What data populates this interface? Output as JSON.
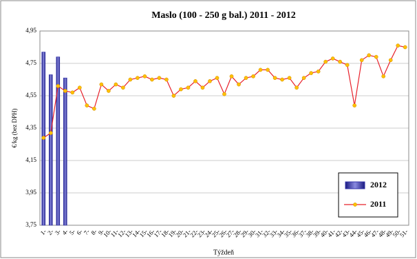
{
  "chart_data": {
    "type": "bar_line",
    "title": "Maslo (100 - 250 g bal.) 2011 - 2012",
    "y_label": "€/kg (bez DPH)",
    "x_label": "Týždeň",
    "categories": [
      "1-",
      "2-",
      "3-",
      "4-",
      "5-",
      "6-",
      "7-",
      "8-",
      "9-",
      "10-",
      "11-",
      "12-",
      "13-",
      "14-",
      "15-",
      "16-",
      "17-",
      "18-",
      "19-",
      "20-",
      "21-",
      "22-",
      "23-",
      "24-",
      "25-",
      "26-",
      "27-",
      "28-",
      "29-",
      "30-",
      "31-",
      "32-",
      "33-",
      "34-",
      "35-",
      "36-",
      "37-",
      "38-",
      "39-",
      "40-",
      "41-",
      "42-",
      "43-",
      "44-",
      "45-",
      "46-",
      "47-",
      "48-",
      "49-",
      "50-",
      "51-"
    ],
    "series": [
      {
        "name": "2012",
        "type": "bar",
        "color": "#3333aa",
        "values": [
          4.82,
          4.68,
          4.79,
          4.66,
          null,
          null,
          null,
          null,
          null,
          null,
          null,
          null,
          null,
          null,
          null,
          null,
          null,
          null,
          null,
          null,
          null,
          null,
          null,
          null,
          null,
          null,
          null,
          null,
          null,
          null,
          null,
          null,
          null,
          null,
          null,
          null,
          null,
          null,
          null,
          null,
          null,
          null,
          null,
          null,
          null,
          null,
          null,
          null,
          null,
          null,
          null
        ]
      },
      {
        "name": "2011",
        "type": "line",
        "color": "#e8202a",
        "marker_color": "#ffc000",
        "values": [
          4.29,
          4.32,
          4.61,
          4.58,
          4.57,
          4.6,
          4.49,
          4.47,
          4.62,
          4.58,
          4.62,
          4.6,
          4.65,
          4.66,
          4.67,
          4.65,
          4.66,
          4.65,
          4.55,
          4.59,
          4.6,
          4.64,
          4.6,
          4.64,
          4.66,
          4.56,
          4.67,
          4.62,
          4.66,
          4.67,
          4.71,
          4.71,
          4.66,
          4.65,
          4.66,
          4.6,
          4.66,
          4.69,
          4.7,
          4.76,
          4.78,
          4.76,
          4.74,
          4.49,
          4.77,
          4.8,
          4.79,
          4.67,
          4.77,
          4.86,
          4.85
        ]
      }
    ],
    "ylim": [
      3.75,
      4.95
    ],
    "yticks": [
      {
        "value": 3.75,
        "label": "3,75"
      },
      {
        "value": 3.95,
        "label": "3,95"
      },
      {
        "value": 4.15,
        "label": "4,15"
      },
      {
        "value": 4.35,
        "label": "4,35"
      },
      {
        "value": 4.55,
        "label": "4,55"
      },
      {
        "value": 4.75,
        "label": "4,75"
      },
      {
        "value": 4.95,
        "label": "4,95"
      }
    ],
    "grid": true,
    "legend": "lower right"
  }
}
